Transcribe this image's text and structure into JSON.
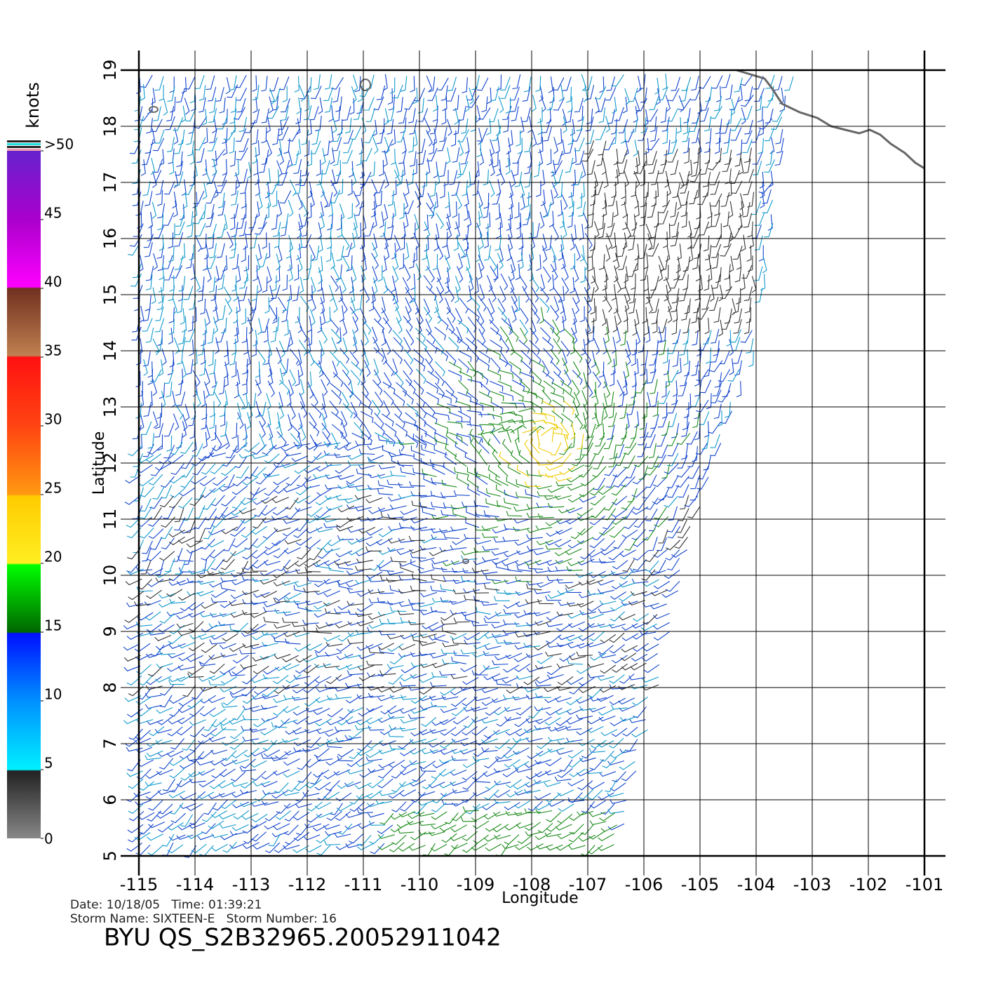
{
  "chart_data": {
    "type": "wind-barb-map",
    "x_label": "Longitude",
    "y_label": "Latitude",
    "xlim": [
      -115,
      -101
    ],
    "ylim": [
      5,
      19
    ],
    "xticks": [
      -115,
      -114,
      -113,
      -112,
      -111,
      -110,
      -109,
      -108,
      -107,
      -106,
      -105,
      -104,
      -103,
      -102,
      -101
    ],
    "yticks": [
      5,
      6,
      7,
      8,
      9,
      10,
      11,
      12,
      13,
      14,
      15,
      16,
      17,
      18,
      19
    ],
    "grid": true,
    "colorbar": {
      "label": "knots",
      "lim": [
        0,
        50
      ],
      "ticks": [
        0,
        5,
        10,
        15,
        20,
        25,
        30,
        35,
        40,
        45,
        {
          "value": 50,
          "label": ">50"
        }
      ]
    },
    "footer": {
      "line1": "Date: 10/18/05   Time: 01:39:21",
      "line2": "Storm Name: SIXTEEN-E   Storm Number: 16",
      "title": "BYU QS_S2B32965.20052911042"
    }
  }
}
